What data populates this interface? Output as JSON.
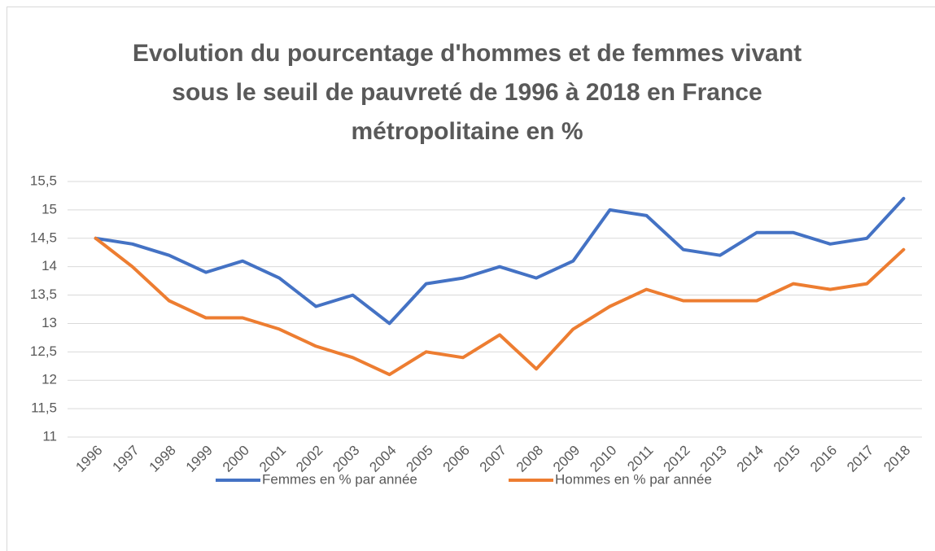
{
  "chart_data": {
    "type": "line",
    "title": "Evolution du pourcentage d'hommes et de femmes vivant sous le seuil de pauvreté de 1996 à 2018 en France métropolitaine en %",
    "categories": [
      "1996",
      "1997",
      "1998",
      "1999",
      "2000",
      "2001",
      "2002",
      "2003",
      "2004",
      "2005",
      "2006",
      "2007",
      "2008",
      "2009",
      "2010",
      "2011",
      "2012",
      "2013",
      "2014",
      "2015",
      "2016",
      "2017",
      "2018"
    ],
    "series": [
      {
        "name": "Femmes en % par année",
        "color": "#4472c4",
        "values": [
          14.5,
          14.4,
          14.2,
          13.9,
          14.1,
          13.8,
          13.3,
          13.5,
          13.0,
          13.7,
          13.8,
          14.0,
          13.8,
          14.1,
          15.0,
          14.9,
          14.3,
          14.2,
          14.6,
          14.6,
          14.4,
          14.5,
          15.2
        ]
      },
      {
        "name": "Hommes en % par année",
        "color": "#ed7d31",
        "values": [
          14.5,
          14.0,
          13.4,
          13.1,
          13.1,
          12.9,
          12.6,
          12.4,
          12.1,
          12.5,
          12.4,
          12.8,
          12.2,
          12.9,
          13.3,
          13.6,
          13.4,
          13.4,
          13.4,
          13.7,
          13.6,
          13.7,
          14.3
        ]
      }
    ],
    "ylim": [
      11,
      15.5
    ],
    "yticks": [
      11,
      {
        "value": 11.5,
        "label": "11,5"
      },
      12,
      {
        "value": 12.5,
        "label": "12,5"
      },
      13,
      {
        "value": 13.5,
        "label": "13,5"
      },
      14,
      {
        "value": 14.5,
        "label": "14,5"
      },
      15,
      {
        "value": 15.5,
        "label": "15,5"
      }
    ],
    "grid": true,
    "legend": "bottom"
  }
}
